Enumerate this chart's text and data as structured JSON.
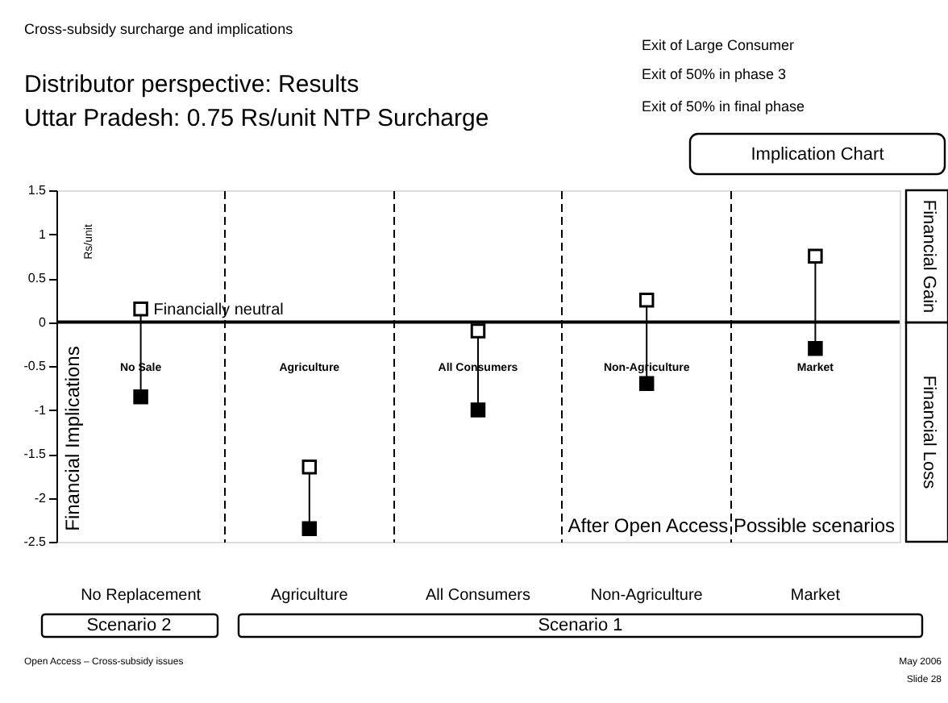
{
  "chart_data": {
    "type": "scatter",
    "title": "Cross-subsidy surcharge and implications",
    "subtitle": "Distributor perspective: Results\nUttar Pradesh: 0.75 Rs/unit NTP Surcharge",
    "ylabel": "Financial Implications",
    "categories": [
      "No Sale",
      "Agriculture",
      "All Consumers",
      "Non-Agriculture",
      "Market"
    ],
    "series": [
      {
        "color": "#ffffff",
        "values": [
          0.15,
          -1.65,
          -0.1,
          0.25,
          0.75
        ]
      },
      {
        "color": "#000000",
        "values": [
          -0.85,
          -2.35,
          -1.0,
          -0.7,
          -0.3
        ]
      }
    ],
    "ylim": [
      -2.5,
      1.5
    ],
    "yticks": [
      -2.5,
      -2,
      -1.5,
      -1,
      -0.5,
      0,
      0.5,
      1,
      1.5
    ],
    "ref_lines": [
      {
        "axis": "y",
        "value": 0,
        "label": "Financially neutral"
      }
    ],
    "grid": "x",
    "marker": "square",
    "legend": false,
    "annotations": [
      "Rs/unit",
      "Financial Gain",
      "Financial Loss",
      "Implication Chart",
      "After Open Access Possible scenarios",
      "No Replacement",
      "Agriculture",
      "All Consumers",
      "Non-Agriculture",
      "Market",
      "Scenario 2",
      "Scenario 1",
      "Open Access – Cross-subsidy issues",
      "May 2006",
      "Slide 28",
      "Exit of Large Consumer",
      "Exit of 50% in phase 3",
      "Exit of 50% in final phase"
    ]
  }
}
